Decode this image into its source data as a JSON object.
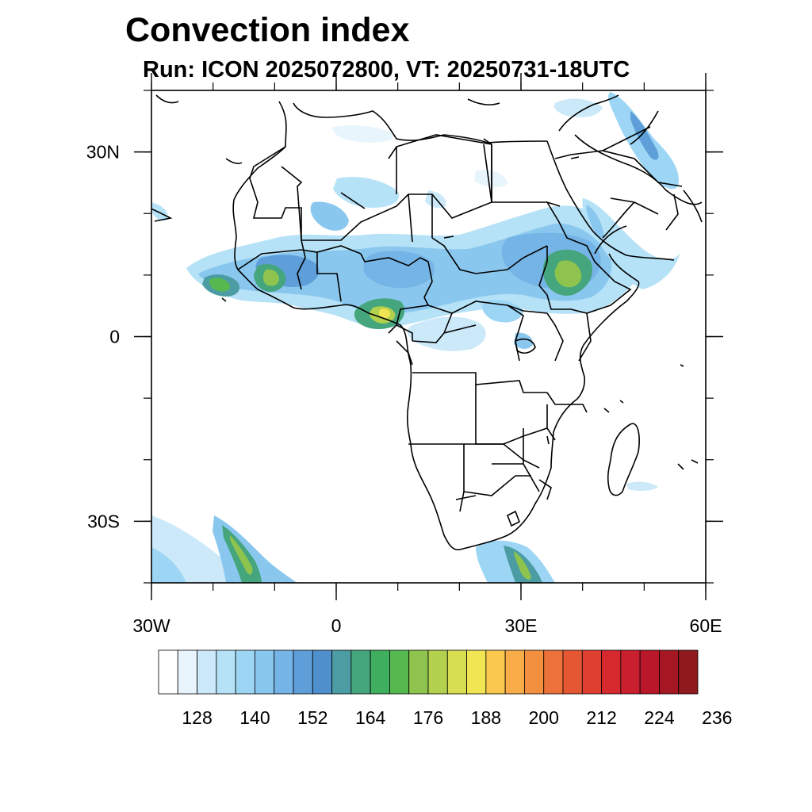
{
  "title": "Convection index",
  "subtitle": "Run: ICON 2025072800,  VT: 20250731-18UTC",
  "map": {
    "projection": "cylindrical equidistant",
    "lon_range": [
      -30,
      60
    ],
    "lat_range": [
      -40,
      40
    ],
    "lat_ticks": [
      {
        "value": 30,
        "label": "30N"
      },
      {
        "value": 0,
        "label": "0"
      },
      {
        "value": -30,
        "label": "30S"
      }
    ],
    "lon_ticks": [
      {
        "value": -30,
        "label": "30W"
      },
      {
        "value": 0,
        "label": "0"
      },
      {
        "value": 30,
        "label": "30E"
      },
      {
        "value": 60,
        "label": "60E"
      }
    ],
    "minor_tick_step": 10,
    "overlay_features": [
      "coastlines",
      "country-borders"
    ]
  },
  "colorbar": {
    "colors": [
      "#ffffff",
      "#e9f5fc",
      "#cbe9f9",
      "#b6e2f7",
      "#9cd6f4",
      "#8ac7ef",
      "#75b4e6",
      "#5e9ed9",
      "#4e8fcc",
      "#4c9ca4",
      "#45a57c",
      "#3fae5e",
      "#56b950",
      "#8ec34d",
      "#b3d04e",
      "#d7de52",
      "#f1e554",
      "#f8c84f",
      "#f8ad49",
      "#f39040",
      "#ec713a",
      "#e55632",
      "#df3f2e",
      "#d5292d",
      "#c91f2f",
      "#b8182a",
      "#a51823",
      "#8f1a1d"
    ],
    "labels": [
      "128",
      "140",
      "152",
      "164",
      "176",
      "188",
      "200",
      "212",
      "224",
      "236"
    ],
    "label_every": 3,
    "first_label_box": 2
  }
}
